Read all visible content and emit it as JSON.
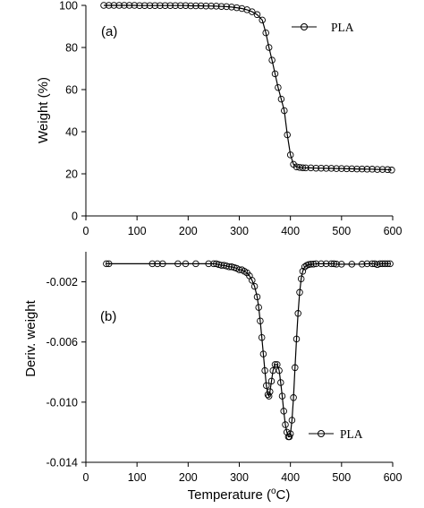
{
  "chart_data": [
    {
      "type": "line",
      "panel_label": "(a)",
      "ylabel": "Weight (%)",
      "xlabel": "",
      "xlim": [
        0,
        600
      ],
      "ylim": [
        0,
        100
      ],
      "xticks": [
        "0",
        "100",
        "200",
        "300",
        "400",
        "500",
        "600"
      ],
      "yticks": [
        "0",
        "20",
        "40",
        "60",
        "80",
        "100"
      ],
      "legend_position": "top-right",
      "grid": false,
      "series": [
        {
          "name": "PLA",
          "marker": "open-circle",
          "color": "#000000",
          "x": [
            35,
            45,
            55,
            65,
            75,
            85,
            95,
            105,
            115,
            125,
            135,
            145,
            155,
            165,
            175,
            185,
            195,
            205,
            215,
            225,
            235,
            245,
            255,
            265,
            275,
            285,
            295,
            305,
            315,
            325,
            335,
            345,
            352,
            358,
            364,
            370,
            376,
            382,
            388,
            394,
            400,
            406,
            412,
            418,
            424,
            430,
            440,
            450,
            460,
            470,
            480,
            490,
            500,
            510,
            520,
            530,
            540,
            550,
            560,
            570,
            580,
            590,
            598
          ],
          "y": [
            100,
            100,
            100,
            100,
            100,
            100,
            100,
            99.9,
            99.9,
            99.9,
            99.9,
            99.9,
            99.9,
            99.9,
            99.9,
            99.9,
            99.9,
            99.8,
            99.8,
            99.8,
            99.7,
            99.7,
            99.6,
            99.5,
            99.4,
            99.2,
            98.9,
            98.5,
            97.9,
            97,
            95.6,
            93,
            87,
            80,
            74,
            67.5,
            61,
            55.5,
            50,
            38.5,
            29,
            24.5,
            23.3,
            23,
            22.9,
            22.8,
            22.8,
            22.7,
            22.7,
            22.6,
            22.6,
            22.5,
            22.5,
            22.4,
            22.4,
            22.3,
            22.3,
            22.2,
            22.2,
            22.1,
            22.1,
            22,
            21.8
          ]
        }
      ]
    },
    {
      "type": "line",
      "panel_label": "(b)",
      "ylabel": "Deriv. weight",
      "xlabel": "Temperature (°C)",
      "xlabel_main": "Temperature (",
      "xlabel_sup": "o",
      "xlabel_end": "C)",
      "xlim": [
        0,
        600
      ],
      "ylim": [
        -0.014,
        0
      ],
      "xticks": [
        "0",
        "100",
        "200",
        "300",
        "400",
        "500",
        "600"
      ],
      "yticks": [
        "-0.002",
        "-0.006",
        "-0.010",
        "-0.014"
      ],
      "legend_position": "bottom-right",
      "grid": false,
      "series": [
        {
          "name": "PLA",
          "marker": "open-circle",
          "color": "#000000",
          "x": [
            40,
            45,
            130,
            140,
            150,
            180,
            195,
            215,
            240,
            250,
            255,
            260,
            265,
            270,
            275,
            280,
            285,
            290,
            295,
            300,
            305,
            310,
            315,
            320,
            325,
            330,
            335,
            338,
            341,
            344,
            347,
            350,
            353,
            356,
            358,
            360,
            363,
            366,
            370,
            374,
            378,
            381,
            384,
            387,
            390,
            393,
            396,
            398,
            400,
            403,
            406,
            409,
            412,
            415,
            418,
            421,
            424,
            428,
            432,
            436,
            440,
            445,
            450,
            460,
            470,
            480,
            485,
            490,
            500,
            520,
            540,
            550,
            560,
            565,
            570,
            575,
            580,
            585,
            590,
            595
          ],
          "y": [
            -0.0008,
            -0.0008,
            -0.0008,
            -0.0008,
            -0.0008,
            -0.0008,
            -0.0008,
            -0.0008,
            -0.0008,
            -0.0008,
            -0.0008,
            -0.00085,
            -0.0009,
            -0.0009,
            -0.00095,
            -0.001,
            -0.001,
            -0.00105,
            -0.0011,
            -0.0012,
            -0.0012,
            -0.0013,
            -0.0014,
            -0.0016,
            -0.0019,
            -0.0023,
            -0.003,
            -0.0037,
            -0.0046,
            -0.0057,
            -0.0068,
            -0.0079,
            -0.0089,
            -0.0095,
            -0.0096,
            -0.0093,
            -0.0086,
            -0.0079,
            -0.0075,
            -0.0075,
            -0.0079,
            -0.0087,
            -0.0096,
            -0.0106,
            -0.0115,
            -0.012,
            -0.0123,
            -0.0123,
            -0.0121,
            -0.0112,
            -0.0097,
            -0.0077,
            -0.0058,
            -0.0041,
            -0.0027,
            -0.0018,
            -0.0013,
            -0.001,
            -0.0009,
            -0.00085,
            -0.00083,
            -0.00082,
            -0.0008,
            -0.0008,
            -0.0008,
            -0.0008,
            -0.0008,
            -0.00082,
            -0.00083,
            -0.00083,
            -0.00082,
            -0.0008,
            -0.0008,
            -0.0008,
            -0.00085,
            -0.0008,
            -0.0008,
            -0.0008,
            -0.0008,
            -0.0008
          ]
        }
      ]
    }
  ]
}
